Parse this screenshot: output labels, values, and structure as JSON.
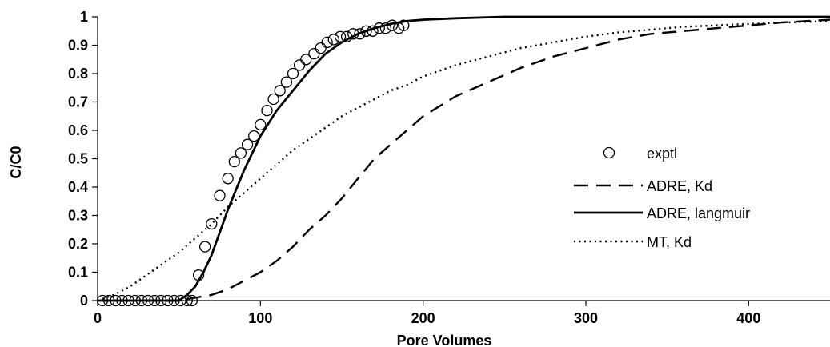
{
  "chart_data": {
    "type": "scatter",
    "xlabel": "Pore Volumes",
    "ylabel": "C/C0",
    "xlim": [
      0,
      450
    ],
    "ylim": [
      0,
      1
    ],
    "xticks": [
      "0",
      "100",
      "200",
      "300",
      "400"
    ],
    "yticks": [
      "0",
      "0.1",
      "0.2",
      "0.3",
      "0.4",
      "0.5",
      "0.6",
      "0.7",
      "0.8",
      "0.9",
      "1"
    ],
    "grid": false,
    "legend_position": "right",
    "series": [
      {
        "name": "exptl",
        "style": "markers",
        "color": "#000000",
        "x": [
          3,
          7,
          11,
          15,
          19,
          23,
          27,
          31,
          35,
          39,
          43,
          47,
          51,
          55,
          58,
          62,
          66,
          70,
          75,
          80,
          84,
          88,
          92,
          96,
          100,
          104,
          108,
          112,
          116,
          120,
          124,
          128,
          133,
          137,
          141,
          145,
          149,
          153,
          157,
          161,
          165,
          169,
          173,
          177,
          181,
          185,
          188
        ],
        "y": [
          0,
          0,
          0,
          0,
          0,
          0,
          0,
          0,
          0,
          0,
          0,
          0,
          0,
          0,
          0,
          0.09,
          0.19,
          0.27,
          0.37,
          0.43,
          0.49,
          0.52,
          0.55,
          0.58,
          0.62,
          0.67,
          0.71,
          0.74,
          0.77,
          0.8,
          0.83,
          0.85,
          0.87,
          0.89,
          0.91,
          0.92,
          0.93,
          0.93,
          0.94,
          0.94,
          0.95,
          0.95,
          0.96,
          0.96,
          0.97,
          0.96,
          0.97
        ]
      },
      {
        "name": "ADRE, Kd",
        "style": "dashed",
        "color": "#000000",
        "x": [
          0,
          40,
          50,
          60,
          70,
          80,
          90,
          100,
          110,
          120,
          130,
          140,
          150,
          160,
          170,
          180,
          190,
          200,
          220,
          240,
          260,
          280,
          300,
          320,
          340,
          360,
          380,
          400,
          420,
          450
        ],
        "y": [
          0,
          0,
          0,
          0.01,
          0.02,
          0.04,
          0.07,
          0.1,
          0.14,
          0.19,
          0.25,
          0.3,
          0.36,
          0.43,
          0.5,
          0.55,
          0.6,
          0.65,
          0.72,
          0.77,
          0.82,
          0.86,
          0.89,
          0.92,
          0.94,
          0.95,
          0.96,
          0.97,
          0.98,
          0.99
        ]
      },
      {
        "name": "ADRE, langmuir",
        "style": "solid",
        "color": "#000000",
        "x": [
          0,
          40,
          45,
          50,
          55,
          60,
          65,
          70,
          75,
          80,
          85,
          90,
          95,
          100,
          110,
          120,
          130,
          140,
          150,
          160,
          170,
          180,
          190,
          200,
          220,
          250,
          300,
          350,
          400,
          450
        ],
        "y": [
          0,
          0,
          0,
          0,
          0.02,
          0.05,
          0.1,
          0.16,
          0.24,
          0.32,
          0.39,
          0.46,
          0.52,
          0.58,
          0.67,
          0.74,
          0.81,
          0.87,
          0.91,
          0.94,
          0.96,
          0.975,
          0.985,
          0.99,
          0.995,
          1,
          1,
          1,
          1,
          1
        ]
      },
      {
        "name": "MT, Kd",
        "style": "dotted",
        "color": "#000000",
        "x": [
          0,
          10,
          20,
          30,
          40,
          50,
          60,
          70,
          80,
          90,
          100,
          110,
          120,
          130,
          140,
          150,
          160,
          170,
          180,
          190,
          200,
          220,
          240,
          260,
          280,
          300,
          320,
          340,
          360,
          380,
          400,
          420,
          450
        ],
        "y": [
          0,
          0.02,
          0.05,
          0.09,
          0.13,
          0.17,
          0.22,
          0.27,
          0.33,
          0.38,
          0.43,
          0.48,
          0.53,
          0.57,
          0.61,
          0.65,
          0.68,
          0.71,
          0.74,
          0.76,
          0.79,
          0.83,
          0.86,
          0.89,
          0.91,
          0.93,
          0.945,
          0.955,
          0.965,
          0.97,
          0.975,
          0.98,
          0.985
        ]
      }
    ]
  }
}
